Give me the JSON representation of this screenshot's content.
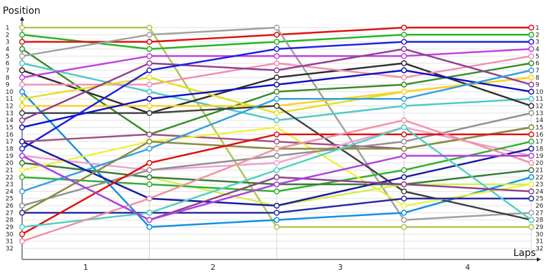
{
  "chart_data": {
    "type": "line",
    "ylabel": "Position",
    "xlabel": "Laps",
    "x": [
      0,
      1,
      2,
      3,
      4
    ],
    "x_categories": [
      "1",
      "2",
      "3",
      "4"
    ],
    "ylim": [
      1,
      32
    ],
    "y_inverted": true,
    "y_ticks": [
      "1",
      "2",
      "3",
      "4",
      "5",
      "6",
      "7",
      "8",
      "9",
      "10",
      "11",
      "12",
      "13",
      "14",
      "15",
      "16",
      "17",
      "18",
      "19",
      "20",
      "21",
      "22",
      "23",
      "24",
      "25",
      "26",
      "27",
      "28",
      "29",
      "30",
      "31",
      "32"
    ],
    "grid": true,
    "series": [
      {
        "color": "#a8c850",
        "values": [
          1,
          1,
          29,
          29,
          29
        ]
      },
      {
        "color": "#22b522",
        "values": [
          2,
          4,
          3,
          2,
          2
        ]
      },
      {
        "color": "#e01010",
        "values": [
          3,
          3,
          2,
          1,
          1
        ]
      },
      {
        "color": "#3a8a2a",
        "values": [
          4,
          16,
          10,
          9,
          6
        ]
      },
      {
        "color": "#a0a0a0",
        "values": [
          5,
          2,
          1,
          28,
          27
        ]
      },
      {
        "color": "#50c8c8",
        "values": [
          6,
          10,
          14,
          12,
          11
        ]
      },
      {
        "color": "#303030",
        "values": [
          7,
          13,
          8,
          6,
          12
        ]
      },
      {
        "color": "#c040e0",
        "values": [
          8,
          5,
          5,
          5,
          4
        ]
      },
      {
        "color": "#f090b0",
        "values": [
          9,
          9,
          6,
          8,
          5
        ]
      },
      {
        "color": "#1090e0",
        "values": [
          10,
          29,
          28,
          27,
          22
        ]
      },
      {
        "color": "#e0e020",
        "values": [
          11,
          8,
          13,
          10,
          8
        ]
      },
      {
        "color": "#ffd020",
        "values": [
          12,
          12,
          12,
          10,
          8
        ]
      },
      {
        "color": "#404040",
        "values": [
          13,
          13,
          12,
          24,
          28
        ]
      },
      {
        "color": "#904090",
        "values": [
          14,
          6,
          7,
          4,
          9
        ]
      },
      {
        "color": "#1010c0",
        "values": [
          15,
          11,
          9,
          7,
          10
        ]
      },
      {
        "color": "#2020e0",
        "values": [
          18,
          7,
          4,
          3,
          3
        ]
      },
      {
        "color": "#a05080",
        "values": [
          17,
          16,
          17,
          18,
          15
        ]
      },
      {
        "color": "#f0a0d0",
        "values": [
          19,
          21,
          20,
          15,
          19
        ]
      },
      {
        "color": "#d0f050",
        "values": [
          20,
          22,
          26,
          23,
          23
        ]
      },
      {
        "color": "#30b030",
        "values": [
          22,
          23,
          24,
          21,
          17
        ]
      },
      {
        "color": "#3a7a3a",
        "values": [
          20,
          22,
          23,
          23,
          21
        ]
      },
      {
        "color": "#f0f040",
        "values": [
          21,
          17,
          15,
          26,
          23
        ]
      },
      {
        "color": "#30a0e0",
        "values": [
          24,
          18,
          11,
          11,
          7
        ]
      },
      {
        "color": "#909090",
        "values": [
          26,
          21,
          19,
          17,
          13
        ]
      },
      {
        "color": "#1a1aa0",
        "values": [
          17,
          25,
          26,
          22,
          18
        ]
      },
      {
        "color": "#8a8a40",
        "values": [
          27,
          17,
          18,
          18,
          15
        ]
      },
      {
        "color": "#2a2aa0",
        "values": [
          27,
          27,
          27,
          25,
          25
        ]
      },
      {
        "color": "#e01010",
        "values": [
          30,
          20,
          16,
          16,
          16
        ]
      },
      {
        "color": "#50d0c0",
        "values": [
          29,
          27,
          21,
          15,
          28
        ]
      },
      {
        "color": "#f090a0",
        "values": [
          31,
          25,
          18,
          14,
          20
        ]
      },
      {
        "color": "#904090",
        "values": [
          19,
          28,
          22,
          23,
          24
        ]
      },
      {
        "color": "#b040e0",
        "values": [
          19,
          28,
          23,
          19,
          19
        ]
      }
    ]
  }
}
